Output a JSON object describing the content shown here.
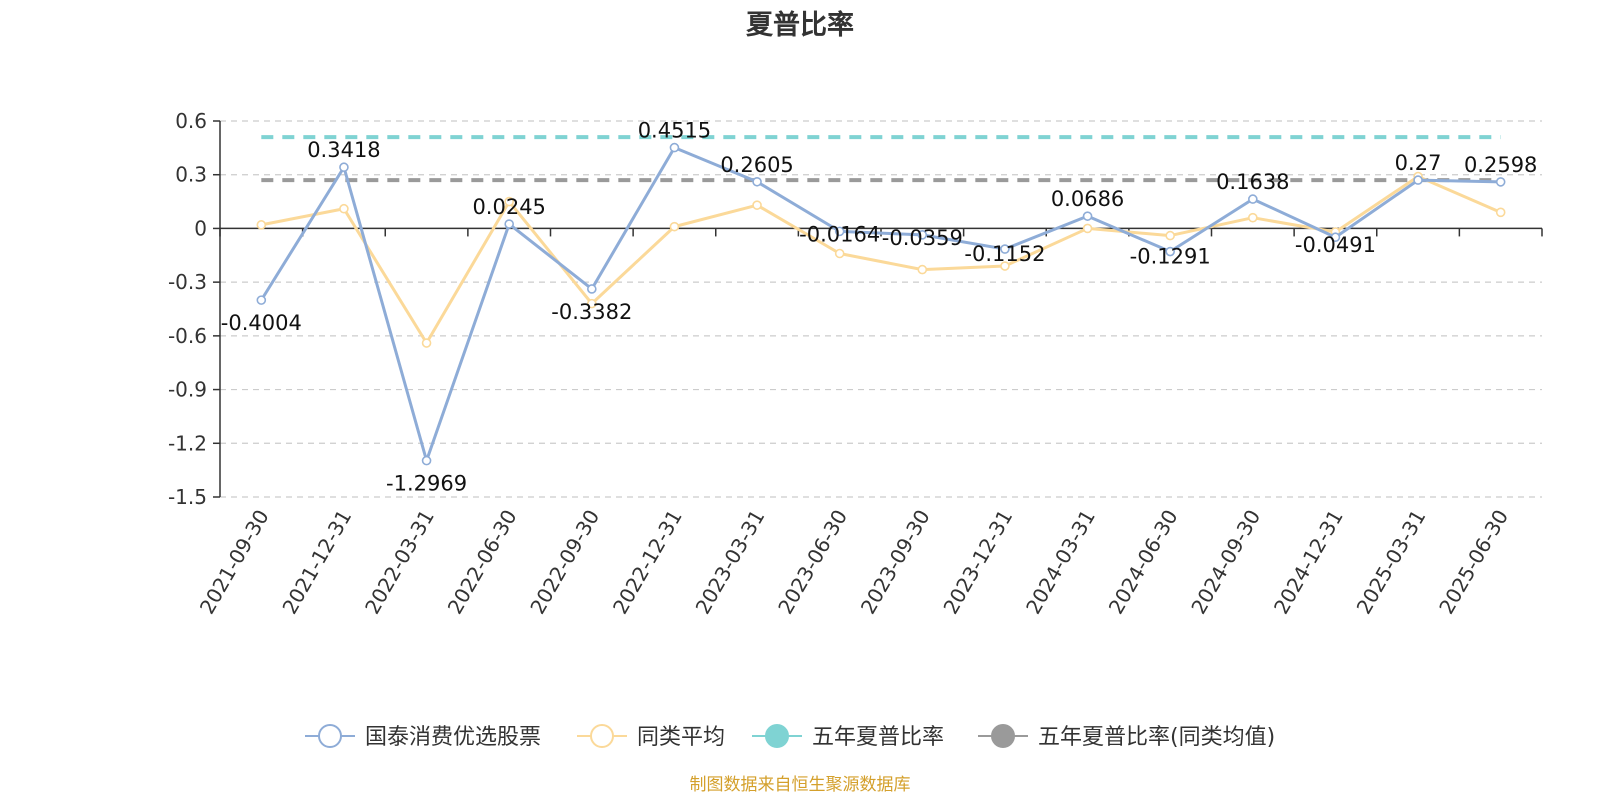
{
  "chart_data": {
    "type": "line",
    "title": "夏普比率",
    "xlabel": "",
    "ylabel": "",
    "ylim": [
      -1.5,
      0.6
    ],
    "yticks": [
      0.6,
      0.3,
      0,
      -0.3,
      -0.6,
      -0.9,
      -1.2,
      -1.5
    ],
    "ytick_labels": [
      "0.6",
      "0.3",
      "0",
      "-0.3",
      "-0.6",
      "-0.9",
      "-1.2",
      "-1.5"
    ],
    "grid": true,
    "legend_position": "bottom",
    "categories": [
      "2021-09-30",
      "2021-12-31",
      "2022-03-31",
      "2022-06-30",
      "2022-09-30",
      "2022-12-31",
      "2023-03-31",
      "2023-06-30",
      "2023-09-30",
      "2023-12-31",
      "2024-03-31",
      "2024-06-30",
      "2024-09-30",
      "2024-12-31",
      "2025-03-31",
      "2025-06-30"
    ],
    "series": [
      {
        "name": "国泰消费优选股票",
        "color": "#8eacd7",
        "marker": "hollow-circle",
        "values": [
          -0.4004,
          0.3418,
          -1.2969,
          0.0245,
          -0.3382,
          0.4515,
          0.2605,
          -0.0164,
          -0.0359,
          -0.1152,
          0.0686,
          -0.1291,
          0.1638,
          -0.0491,
          0.27,
          0.2598
        ],
        "data_labels": [
          "-0.4004",
          "0.3418",
          "-1.2969",
          "0.0245",
          "-0.3382",
          "0.4515",
          "0.2605",
          "-0.0164",
          "-0.0359",
          "-0.1152",
          "0.0686",
          "-0.1291",
          "0.1638",
          "-0.0491",
          "0.27",
          "0.2598"
        ]
      },
      {
        "name": "同类平均",
        "color": "#fbd999",
        "marker": "hollow-circle",
        "values": [
          0.02,
          0.11,
          -0.64,
          0.15,
          -0.42,
          0.01,
          0.13,
          -0.14,
          -0.23,
          -0.21,
          0.0,
          -0.04,
          0.06,
          -0.02,
          0.29,
          0.09
        ]
      },
      {
        "name": "五年夏普比率",
        "color": "#7fd3d3",
        "marker": "filled-circle",
        "style": "dashed",
        "values": [
          0.51,
          0.51,
          0.51,
          0.51,
          0.51,
          0.51,
          0.51,
          0.51,
          0.51,
          0.51,
          0.51,
          0.51,
          0.51,
          0.51,
          0.51,
          0.51
        ]
      },
      {
        "name": "五年夏普比率(同类均值)",
        "color": "#9a9a9a",
        "marker": "filled-circle",
        "style": "dashed",
        "values": [
          0.27,
          0.27,
          0.27,
          0.27,
          0.27,
          0.27,
          0.27,
          0.27,
          0.27,
          0.27,
          0.27,
          0.27,
          0.27,
          0.27,
          0.27,
          0.27
        ]
      }
    ]
  },
  "source": {
    "text": "制图数据来自恒生聚源数据库",
    "color": "#d4a02c"
  }
}
